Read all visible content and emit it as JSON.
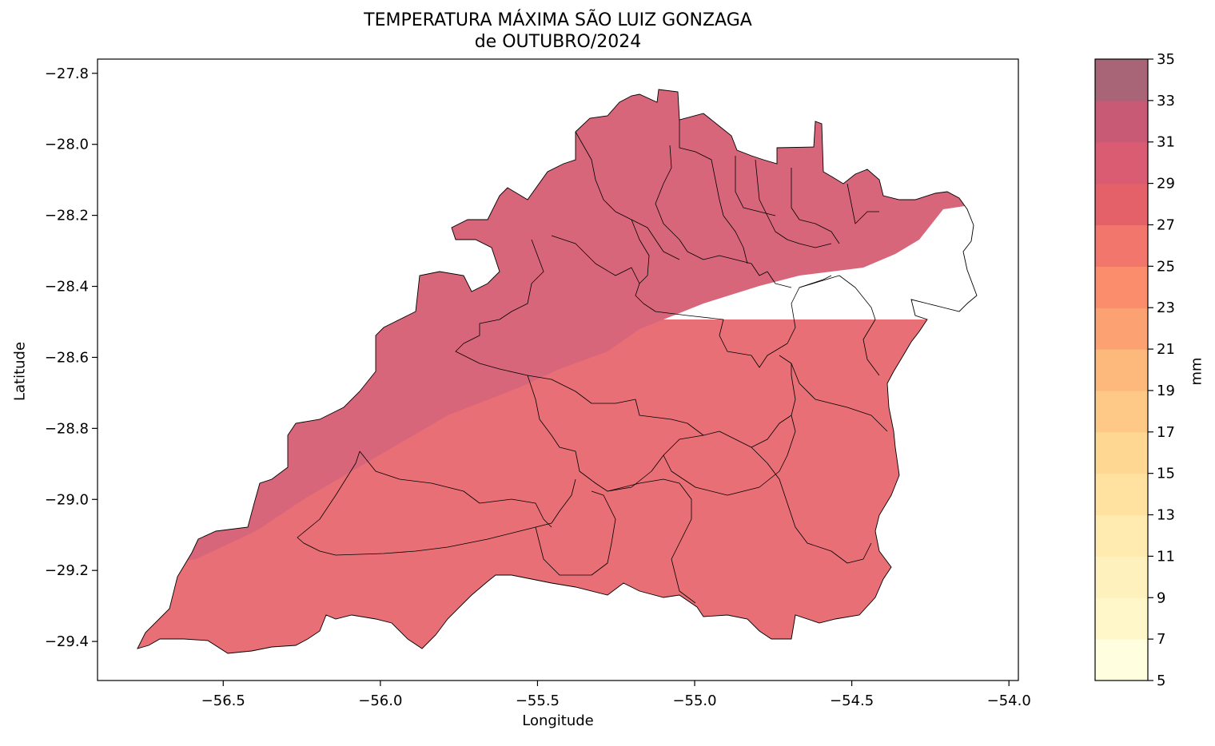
{
  "title": {
    "line1": "TEMPERATURA MÁXIMA SÃO LUIZ GONZAGA",
    "line2": "de OUTUBRO/2024"
  },
  "axes": {
    "xlabel": "Longitude",
    "ylabel": "Latitude",
    "xlim": [
      -56.9,
      -53.97
    ],
    "ylim": [
      -29.51,
      -27.76
    ],
    "xticks": [
      -56.5,
      -56.0,
      -55.5,
      -55.0,
      -54.5,
      -54.0
    ],
    "xtick_labels": [
      "−56.5",
      "−56.0",
      "−55.5",
      "−55.0",
      "−54.5",
      "−54.0"
    ],
    "yticks": [
      -27.8,
      -28.0,
      -28.2,
      -28.4,
      -28.6,
      -28.8,
      -29.0,
      -29.2,
      -29.4
    ],
    "ytick_labels": [
      "−27.8",
      "−28.0",
      "−28.2",
      "−28.4",
      "−28.6",
      "−28.8",
      "−29.0",
      "−29.2",
      "−29.4"
    ]
  },
  "colorbar": {
    "label": "mm",
    "levels": [
      5,
      7,
      9,
      11,
      13,
      15,
      17,
      19,
      21,
      23,
      25,
      27,
      29,
      31,
      33,
      35
    ],
    "level_labels": [
      "5",
      "7",
      "9",
      "11",
      "13",
      "15",
      "17",
      "19",
      "21",
      "23",
      "25",
      "27",
      "29",
      "31",
      "33",
      "35"
    ],
    "colors": [
      "#ffffe0",
      "#fff7c9",
      "#fff1bd",
      "#ffeab0",
      "#ffe2a0",
      "#fed792",
      "#fec987",
      "#fdb97b",
      "#fca272",
      "#fb8c6c",
      "#f2766b",
      "#e46169",
      "#da5c73",
      "#c85a75",
      "#a96578"
    ]
  },
  "regions": {
    "band_colors": {
      "north": "#d7667a",
      "south": "#e86f76"
    }
  },
  "chart_data": {
    "type": "map",
    "title": "TEMPERATURA MÁXIMA SÃO LUIZ GONZAGA de OUTUBRO/2024",
    "xlabel": "Longitude",
    "ylabel": "Latitude",
    "xlim": [
      -56.9,
      -53.97
    ],
    "ylim": [
      -29.51,
      -27.76
    ],
    "colorbar_label": "mm",
    "colorbar_range": [
      5,
      35
    ],
    "series": [
      {
        "name": "29–31",
        "area": "northern and western part of the region"
      },
      {
        "name": "27–29",
        "area": "southern and eastern part of the region"
      }
    ]
  }
}
